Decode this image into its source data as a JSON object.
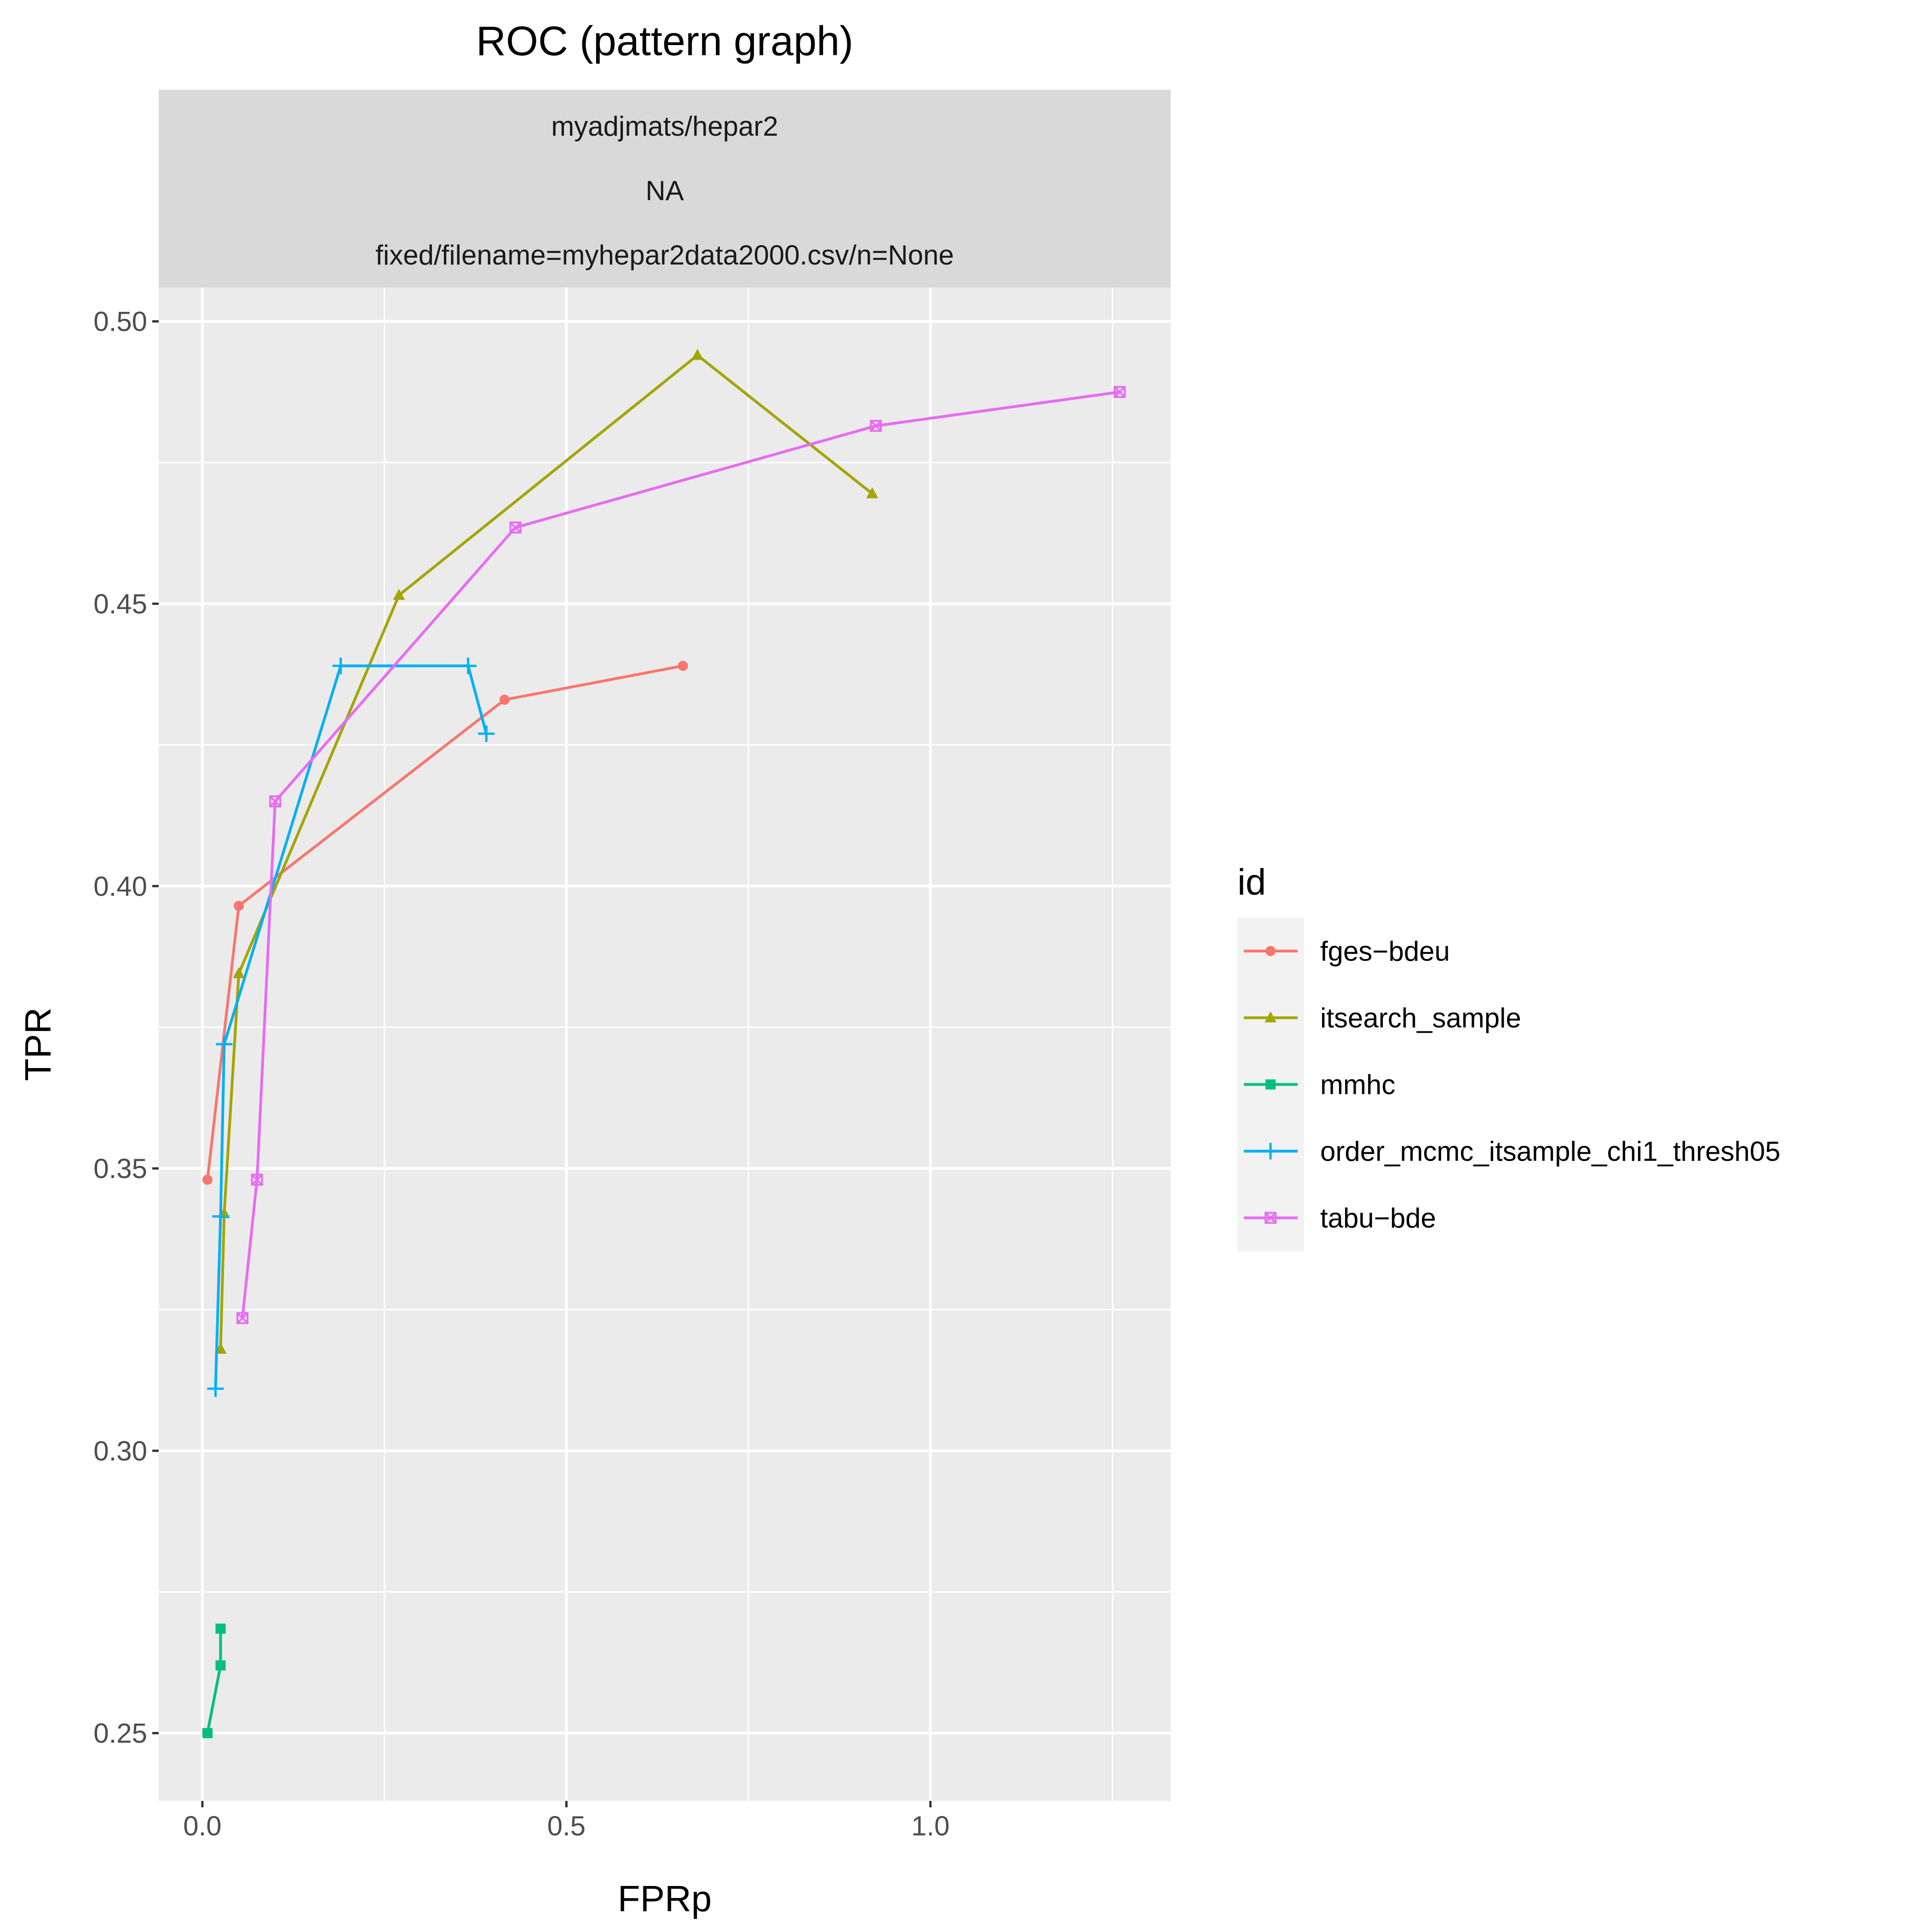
{
  "chart_data": {
    "type": "line",
    "title": "ROC (pattern graph)",
    "facet_strip": [
      "myadjmats/hepar2",
      "NA",
      "fixed/filename=myhepar2data2000.csv/n=None"
    ],
    "xlabel": "FPRp",
    "ylabel": "TPR",
    "xlim": [
      -0.06,
      1.33
    ],
    "ylim": [
      0.238,
      0.506
    ],
    "x_ticks": [
      0.0,
      0.5,
      1.0
    ],
    "x_tick_labels": [
      "0.0",
      "0.5",
      "1.0"
    ],
    "y_ticks": [
      0.25,
      0.3,
      0.35,
      0.4,
      0.45,
      0.5
    ],
    "y_tick_labels": [
      "0.25",
      "0.30",
      "0.35",
      "0.40",
      "0.45",
      "0.50"
    ],
    "grid": true,
    "legend_title": "id",
    "legend_position": "right",
    "series": [
      {
        "name": "fges−bdeu",
        "color": "#F8766D",
        "marker": "circle",
        "points": [
          [
            0.007,
            0.348
          ],
          [
            0.05,
            0.3965
          ],
          [
            0.415,
            0.433
          ],
          [
            0.66,
            0.439
          ]
        ]
      },
      {
        "name": "itsearch_sample",
        "color": "#A3A500",
        "marker": "triangle",
        "points": [
          [
            0.025,
            0.318
          ],
          [
            0.03,
            0.342
          ],
          [
            0.05,
            0.3845
          ],
          [
            0.27,
            0.4515
          ],
          [
            0.68,
            0.494
          ],
          [
            0.92,
            0.4695
          ]
        ]
      },
      {
        "name": "mmhc",
        "color": "#00BF7D",
        "marker": "square",
        "points": [
          [
            0.007,
            0.25
          ],
          [
            0.025,
            0.262
          ],
          [
            0.025,
            0.2685
          ]
        ]
      },
      {
        "name": "order_mcmc_itsample_chi1_thresh05",
        "color": "#00B0F6",
        "marker": "plus",
        "points": [
          [
            0.018,
            0.311
          ],
          [
            0.025,
            0.3415
          ],
          [
            0.03,
            0.372
          ],
          [
            0.19,
            0.439
          ],
          [
            0.365,
            0.439
          ],
          [
            0.39,
            0.427
          ]
        ]
      },
      {
        "name": "tabu−bde",
        "color": "#E76BF3",
        "marker": "boxed-x",
        "points": [
          [
            0.055,
            0.3235
          ],
          [
            0.075,
            0.348
          ],
          [
            0.1,
            0.415
          ],
          [
            0.43,
            0.4635
          ],
          [
            0.925,
            0.4815
          ],
          [
            1.26,
            0.4875
          ]
        ]
      }
    ]
  }
}
